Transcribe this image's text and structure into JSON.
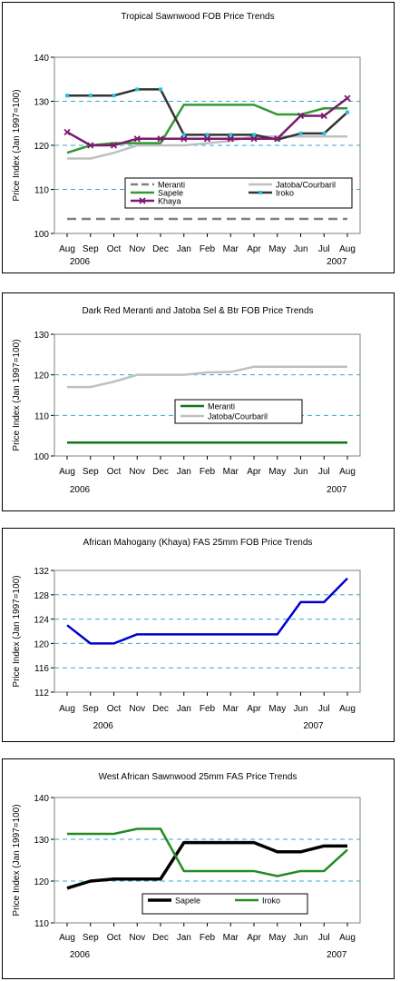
{
  "chart_data": [
    {
      "type": "line",
      "title": "Tropical Sawnwood FOB Price Trends",
      "ylabel": "Price Index (Jan 1997=100)",
      "ylim": [
        100,
        140
      ],
      "yticks": [
        100,
        110,
        120,
        130,
        140
      ],
      "grid": true,
      "categories": [
        "Aug",
        "Sep",
        "Oct",
        "Nov",
        "Dec",
        "Jan",
        "Feb",
        "Mar",
        "Apr",
        "May",
        "Jun",
        "Jul",
        "Aug"
      ],
      "year_labels": [
        {
          "text": "2006",
          "at": 0
        },
        {
          "text": "2007",
          "at": 11
        }
      ],
      "legend_position": "center-bottom",
      "series": [
        {
          "name": "Meranti",
          "color": "#808080",
          "style": "dash",
          "marker": "",
          "values": [
            103.3,
            103.3,
            103.3,
            103.3,
            103.3,
            103.3,
            103.3,
            103.3,
            103.3,
            103.3,
            103.3,
            103.3,
            103.3
          ]
        },
        {
          "name": "Jatoba/Courbaril",
          "color": "#c0c0c0",
          "style": "solid",
          "marker": "",
          "values": [
            117,
            117,
            118.3,
            120,
            120,
            120,
            120.5,
            121,
            122,
            122,
            122,
            122,
            122
          ]
        },
        {
          "name": "Sapele",
          "color": "#339933",
          "style": "solid",
          "marker": "",
          "values": [
            118.3,
            120,
            120.5,
            120.5,
            120.5,
            129.2,
            129.2,
            129.2,
            129.2,
            127,
            127,
            128.4,
            128.4
          ]
        },
        {
          "name": "Iroko",
          "color": "#333333",
          "style": "solid",
          "marker": "square",
          "values": [
            131.3,
            131.3,
            131.3,
            132.7,
            132.7,
            122.4,
            122.4,
            122.4,
            122.4,
            121.3,
            122.7,
            122.7,
            127.5
          ]
        },
        {
          "name": "Khaya",
          "color": "#7a1a6e",
          "style": "solid",
          "marker": "x",
          "values": [
            123,
            120,
            120,
            121.5,
            121.5,
            121.5,
            121.5,
            121.5,
            121.5,
            121.5,
            126.7,
            126.7,
            130.7
          ]
        }
      ]
    },
    {
      "type": "line",
      "title": "Dark Red Meranti and Jatoba Sel & Btr FOB Price Trends",
      "ylabel": "Price Index (Jan 1997=100)",
      "ylim": [
        100,
        130
      ],
      "yticks": [
        100,
        110,
        120,
        130
      ],
      "grid": true,
      "categories": [
        "Aug",
        "Sep",
        "Oct",
        "Nov",
        "Dec",
        "Jan",
        "Feb",
        "Mar",
        "Apr",
        "May",
        "Jun",
        "Jul",
        "Aug"
      ],
      "year_labels": [
        {
          "text": "2006",
          "at": 0
        },
        {
          "text": "2007",
          "at": 11
        }
      ],
      "legend_position": "center",
      "series": [
        {
          "name": "Meranti",
          "color": "#117711",
          "style": "solid",
          "marker": "",
          "values": [
            103.3,
            103.3,
            103.3,
            103.3,
            103.3,
            103.3,
            103.3,
            103.3,
            103.3,
            103.3,
            103.3,
            103.3,
            103.3
          ]
        },
        {
          "name": "Jatoba/Courbaril",
          "color": "#c0c0c0",
          "style": "solid",
          "marker": "",
          "values": [
            117,
            117,
            118.3,
            120,
            120,
            120,
            120.6,
            120.7,
            122,
            122,
            122,
            122,
            122
          ]
        }
      ]
    },
    {
      "type": "line",
      "title": "African Mahogany (Khaya) FAS 25mm FOB Price Trends",
      "ylabel": "Price Index (Jan 1997=100)",
      "ylim": [
        112,
        132
      ],
      "yticks": [
        112,
        116,
        120,
        124,
        128,
        132
      ],
      "grid": true,
      "categories": [
        "Aug",
        "Sep",
        "Oct",
        "Nov",
        "Dec",
        "Jan",
        "Feb",
        "Mar",
        "Apr",
        "May",
        "Jun",
        "Jul",
        "Aug"
      ],
      "year_labels": [
        {
          "text": "2006",
          "at": 1
        },
        {
          "text": "2007",
          "at": 10
        }
      ],
      "legend_position": "",
      "series": [
        {
          "color": "#0000cc",
          "style": "solid",
          "marker": "",
          "values": [
            123,
            120,
            120,
            121.5,
            121.5,
            121.5,
            121.5,
            121.5,
            121.5,
            121.5,
            126.8,
            126.8,
            130.7
          ]
        }
      ]
    },
    {
      "type": "line",
      "title": "West African Sawnwood 25mm FAS Price Trends",
      "ylabel": "Price Index (Jan 1997=100)",
      "ylim": [
        110,
        140
      ],
      "yticks": [
        110,
        120,
        130,
        140
      ],
      "grid": true,
      "categories": [
        "Aug",
        "Sep",
        "Oct",
        "Nov",
        "Dec",
        "Jan",
        "Feb",
        "Mar",
        "Apr",
        "May",
        "Jun",
        "Jul",
        "Aug"
      ],
      "year_labels": [
        {
          "text": "2006",
          "at": 0
        },
        {
          "text": "2007",
          "at": 11
        }
      ],
      "legend_position": "center-bottom",
      "series": [
        {
          "name": "Sapele",
          "color": "#000000",
          "style": "thick",
          "marker": "",
          "values": [
            118.3,
            120,
            120.5,
            120.5,
            120.5,
            129.2,
            129.2,
            129.2,
            129.2,
            127,
            127,
            128.4,
            128.4
          ]
        },
        {
          "name": "Iroko",
          "color": "#228b22",
          "style": "solid",
          "marker": "",
          "values": [
            131.3,
            131.3,
            131.3,
            132.5,
            132.5,
            122.4,
            122.4,
            122.4,
            122.4,
            121.2,
            122.4,
            122.4,
            127.5
          ]
        }
      ]
    }
  ]
}
